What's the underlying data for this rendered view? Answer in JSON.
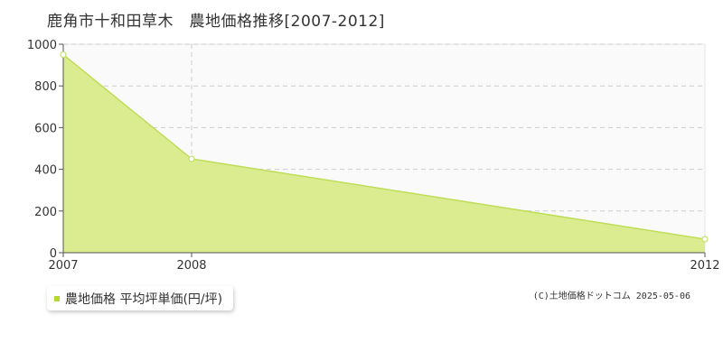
{
  "header": {
    "title": "鹿角市十和田草木　農地価格推移[2007-2012]"
  },
  "chart_data": {
    "type": "area",
    "x": [
      "2007",
      "2008",
      "2012"
    ],
    "x_positions": [
      2007,
      2008,
      2012
    ],
    "series": [
      {
        "name": "農地価格 平均坪単価(円/坪)",
        "values": [
          950,
          450,
          65
        ]
      }
    ],
    "title": "鹿角市十和田草木　農地価格推移[2007-2012]",
    "xlabel": "",
    "ylabel": "",
    "xlim": [
      2007,
      2012
    ],
    "ylim": [
      0,
      1000
    ],
    "yticks": [
      0,
      200,
      400,
      600,
      800,
      1000
    ],
    "grid": true,
    "legend_position": "bottom-left"
  },
  "legend": {
    "label": "農地価格 平均坪単価(円/坪)"
  },
  "footer": {
    "copyright": "(C)土地価格ドットコム 2025-05-06"
  },
  "colors": {
    "fill": "#dbec90",
    "stroke": "#bedd5a",
    "marker_stroke": "#c4df6a",
    "legend_marker": "#b5d833",
    "plot_background": "#fafafa",
    "grid": "#cccccc",
    "axis": "#555555",
    "text": "#333333"
  }
}
